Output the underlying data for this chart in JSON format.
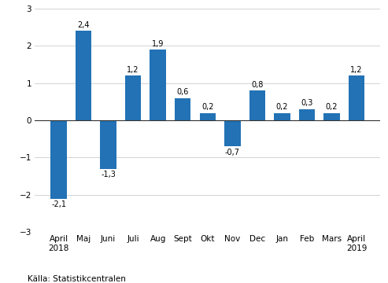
{
  "categories": [
    "April\n2018",
    "Maj",
    "Juni",
    "Juli",
    "Aug",
    "Sept",
    "Okt",
    "Nov",
    "Dec",
    "Jan",
    "Feb",
    "Mars",
    "April\n2019"
  ],
  "values": [
    -2.1,
    2.4,
    -1.3,
    1.2,
    1.9,
    0.6,
    0.2,
    -0.7,
    0.8,
    0.2,
    0.3,
    0.2,
    1.2
  ],
  "bar_color": "#2272B5",
  "ylim": [
    -3,
    3
  ],
  "yticks": [
    -3,
    -2,
    -1,
    0,
    1,
    2,
    3
  ],
  "source": "Källa: Statistikcentralen",
  "bar_width": 0.65,
  "label_fontsize": 7,
  "tick_fontsize": 7.5,
  "source_fontsize": 7.5
}
